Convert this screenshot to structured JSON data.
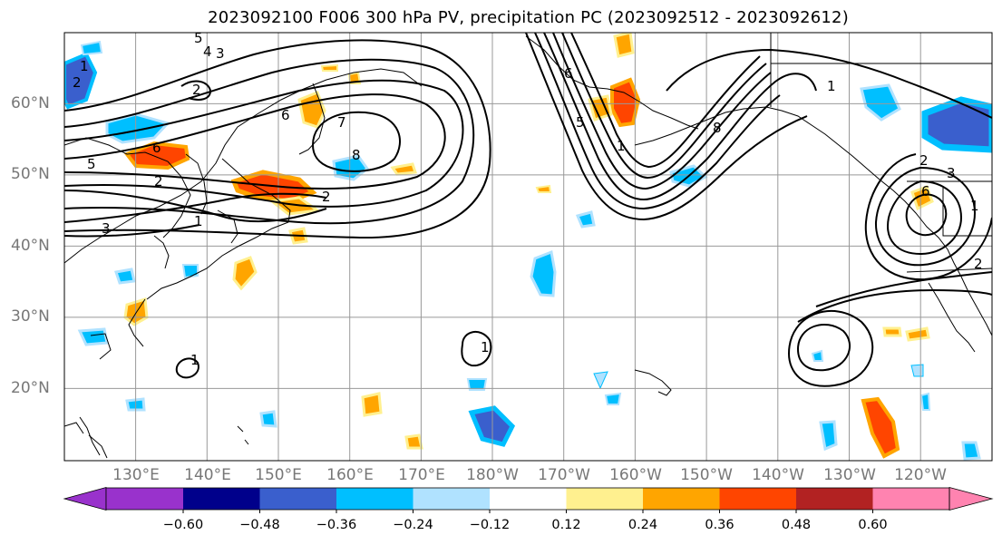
{
  "title": "2023092100 F006 300 hPa PV, precipitation PC (2023092512 - 2023092612)",
  "map": {
    "lat_labels": [
      "60°N",
      "50°N",
      "40°N",
      "30°N",
      "20°N"
    ],
    "lon_labels": [
      "130°E",
      "140°E",
      "150°E",
      "160°E",
      "170°E",
      "180°W",
      "170°W",
      "160°W",
      "150°W",
      "140°W",
      "130°W",
      "120°W"
    ],
    "contour_labels": [
      "5",
      "4",
      "3",
      "2",
      "6",
      "7",
      "8",
      "5",
      "6",
      "2",
      "3",
      "1",
      "2",
      "2",
      "1",
      "6",
      "1",
      "5",
      "8",
      "1",
      "2",
      "6",
      "3",
      "2",
      "1",
      "1",
      "1"
    ]
  },
  "colorbar": {
    "ticks": [
      "−0.60",
      "−0.48",
      "−0.36",
      "−0.24",
      "−0.12",
      "0.12",
      "0.24",
      "0.36",
      "0.48",
      "0.60"
    ],
    "colors": [
      "#9932cc",
      "#00008b",
      "#3a5fcd",
      "#00bfff",
      "#b0e2ff",
      "#ffffff",
      "#fff08f",
      "#ffa500",
      "#ff4500",
      "#b22222",
      "#ff83b0"
    ]
  }
}
